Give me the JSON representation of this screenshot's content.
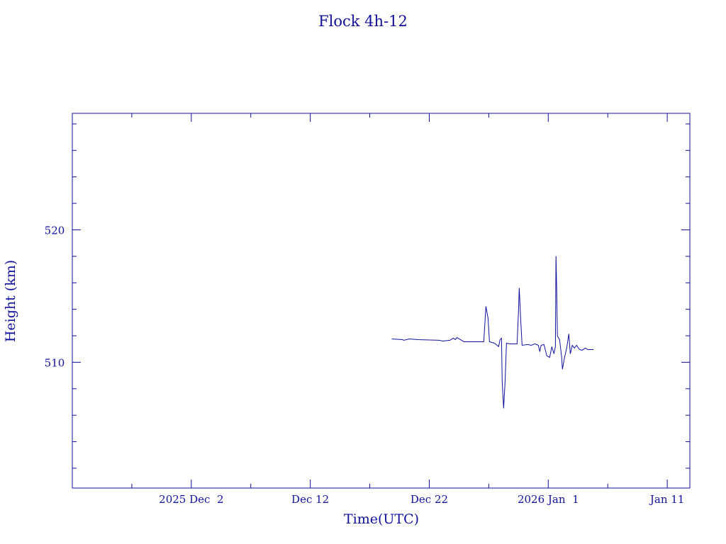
{
  "chart_data": {
    "type": "line",
    "title": "Flock 4h-12",
    "xlabel": "Time(UTC)",
    "ylabel": "Height (km)",
    "color": "#1010a0",
    "x": [
      16.85,
      17.74,
      17.86,
      18.33,
      19.05,
      20.83,
      21.13,
      21.73,
      22.02,
      22.2,
      22.32,
      22.62,
      22.92,
      24.4,
      24.58,
      24.76,
      24.94,
      25.06,
      25.48,
      25.83,
      25.95,
      26.07,
      26.13,
      26.25,
      26.37,
      26.49,
      26.79,
      27.38,
      27.5,
      27.56,
      27.68,
      27.8,
      28.27,
      28.57,
      28.87,
      29.17,
      29.29,
      29.4,
      29.64,
      29.88,
      30.12,
      30.3,
      30.48,
      30.6,
      30.65,
      30.71,
      30.77,
      30.95,
      31.13,
      31.19,
      31.37,
      31.55,
      31.73,
      31.85,
      32.02,
      32.2,
      32.38,
      32.62,
      32.86,
      33.1,
      33.33,
      33.81
    ],
    "values": [
      511.76,
      511.71,
      511.66,
      511.76,
      511.71,
      511.66,
      511.6,
      511.66,
      511.82,
      511.71,
      511.87,
      511.71,
      511.55,
      511.55,
      511.55,
      514.22,
      513.32,
      511.55,
      511.44,
      511.18,
      511.71,
      511.82,
      508.5,
      506.52,
      508.5,
      511.44,
      511.39,
      511.39,
      513.85,
      515.61,
      513.32,
      511.28,
      511.34,
      511.28,
      511.39,
      511.28,
      510.8,
      511.28,
      511.34,
      510.48,
      510.37,
      511.18,
      510.64,
      511.18,
      518.02,
      515.45,
      511.98,
      511.71,
      510.37,
      509.47,
      510.37,
      511.07,
      512.14,
      510.64,
      511.28,
      511.07,
      511.28,
      510.96,
      510.91,
      511.07,
      510.96,
      510.96
    ],
    "xlim": [
      -10,
      41.9
    ],
    "xticks": [
      {
        "value": 0,
        "label": "2025 Dec  2"
      },
      {
        "value": 10,
        "label": "Dec 12"
      },
      {
        "value": 20,
        "label": "Dec 22"
      },
      {
        "value": 30,
        "label": "2026 Jan  1"
      },
      {
        "value": 40,
        "label": "Jan 11"
      }
    ],
    "xminor": [
      -5,
      5,
      15,
      25,
      35
    ],
    "ylim": [
      500.5,
      528.8
    ],
    "yticks": [
      510,
      520
    ],
    "yminor": [
      502,
      504,
      506,
      508,
      512,
      514,
      516,
      518,
      522,
      524,
      526,
      528
    ]
  }
}
